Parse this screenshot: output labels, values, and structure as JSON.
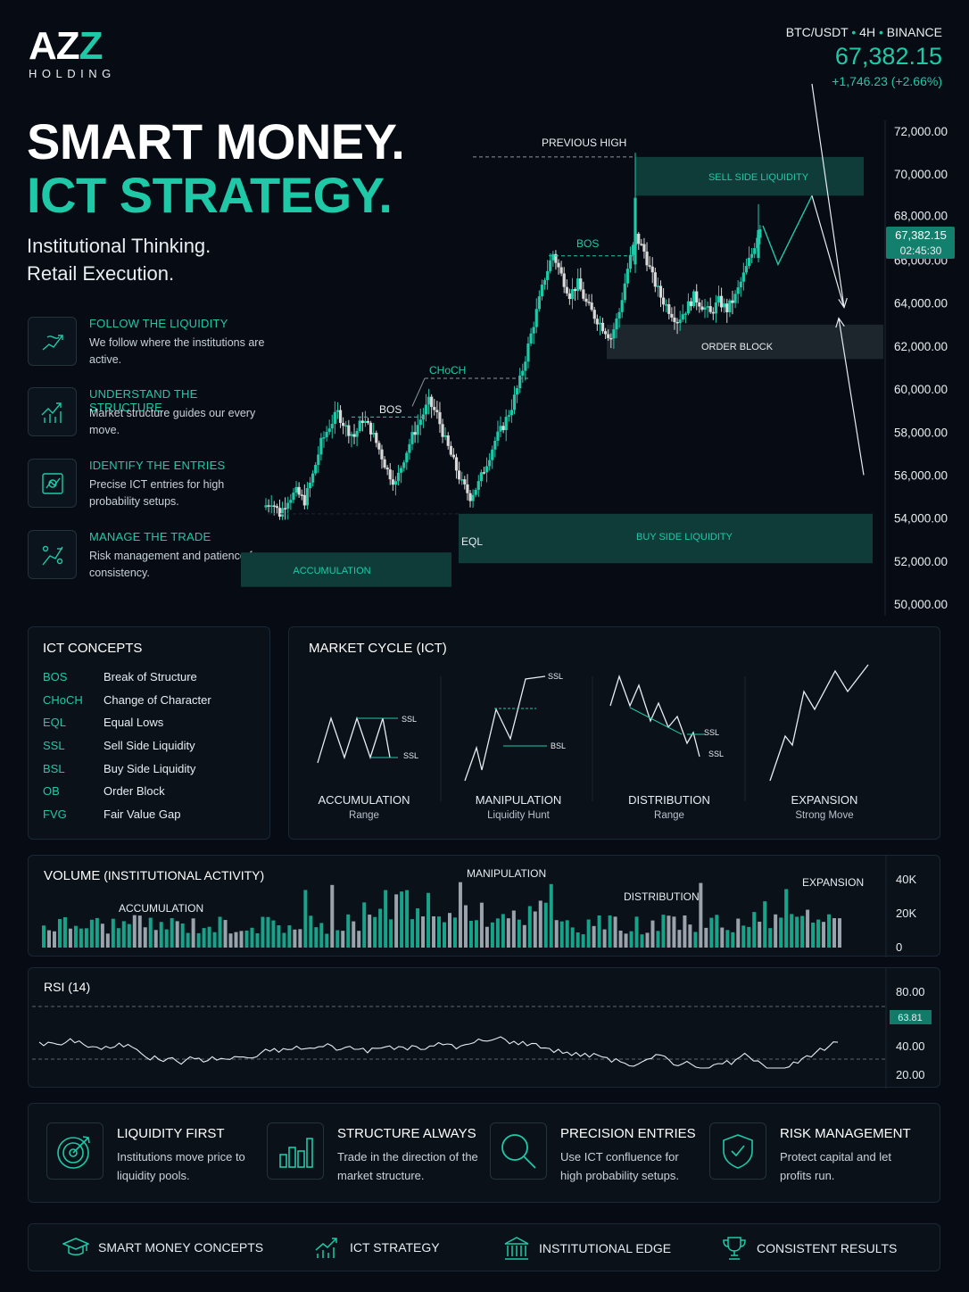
{
  "brand": {
    "logo_main_a": "AZ",
    "logo_main_b": "Z",
    "logo_sub": "HOLDING"
  },
  "ticker": {
    "pair": "BTC/USDT",
    "sep": "•",
    "timeframe": "4H",
    "exchange": "BINANCE",
    "price": "67,382.15",
    "change": "+1,746.23 (+2.66%)"
  },
  "hero": {
    "line1": "SMART MONEY.",
    "line2": "ICT STRATEGY.",
    "tag1": "Institutional Thinking.",
    "tag2": "Retail Execution."
  },
  "features": [
    {
      "title": "FOLLOW THE LIQUIDITY",
      "desc": "We follow where the institutions are active.",
      "icon": "liquidity-icon"
    },
    {
      "title": "UNDERSTAND THE STRUCTURE",
      "desc": "Market structure guides our every move.",
      "icon": "structure-icon"
    },
    {
      "title": "IDENTIFY THE ENTRIES",
      "desc": "Precise ICT entries for high probability setups.",
      "icon": "entries-icon"
    },
    {
      "title": "MANAGE THE TRADE",
      "desc": "Risk management and patience for consistency.",
      "icon": "manage-icon"
    }
  ],
  "colors": {
    "accent": "#1fc9a8",
    "bear": "#d9d9d9",
    "bg": "#070c14"
  },
  "chart_data": [
    {
      "type": "candlestick",
      "title": "",
      "ylim": [
        50000,
        72000
      ],
      "yticks": [
        "72,000.00",
        "70,000.00",
        "68,000.00",
        "66,000.00",
        "64,000.00",
        "62,000.00",
        "60,000.00",
        "58,000.00",
        "56,000.00",
        "54,000.00",
        "52,000.00",
        "50,000.00"
      ],
      "last_price": "67,382.15",
      "countdown": "02:45:30",
      "path": [
        54500,
        54800,
        54200,
        54900,
        55200,
        54800,
        56000,
        57500,
        58300,
        58900,
        58200,
        57800,
        58600,
        58100,
        57200,
        56200,
        55600,
        56800,
        57800,
        58600,
        59400,
        58800,
        57600,
        56600,
        55600,
        55000,
        55600,
        56600,
        57600,
        58300,
        59200,
        60400,
        62000,
        63600,
        65200,
        66300,
        65300,
        64400,
        64900,
        64000,
        63400,
        62900,
        62400,
        63600,
        65600,
        67100,
        66400,
        65200,
        64300,
        63700,
        63200,
        63700,
        64300,
        63900,
        63500,
        64100,
        63700,
        64300,
        65300,
        66300,
        67600
      ],
      "annotations": {
        "previous_high": "PREVIOUS HIGH",
        "ssl": "SELL SIDE LIQUIDITY",
        "bos1": "BOS",
        "bos2": "BOS",
        "choch": "CHoCH",
        "order_block": "ORDER BLOCK",
        "eql": "EQL",
        "bsl": "BUY SIDE LIQUIDITY",
        "accumulation": "ACCUMULATION"
      },
      "projection": [
        [
          67600,
          69000
        ],
        [
          69000,
          63800
        ],
        [
          62900,
          55900
        ]
      ]
    },
    {
      "type": "bar",
      "title": "VOLUME",
      "title_suffix": " (INSTITUTIONAL ACTIVITY)",
      "ylim": [
        0,
        40000
      ],
      "yticks": [
        "40K",
        "20K",
        "0"
      ],
      "phases": [
        "ACCUMULATION",
        "MANIPULATION",
        "DISTRIBUTION",
        "EXPANSION"
      ]
    },
    {
      "type": "line",
      "title": "RSI (14)",
      "ylim": [
        20,
        80
      ],
      "yticks": [
        "80.00",
        "40.00",
        "20.00"
      ],
      "current": "63.81"
    }
  ],
  "concepts": {
    "title": "ICT CONCEPTS",
    "items": [
      {
        "abbr": "BOS",
        "name": "Break of Structure"
      },
      {
        "abbr": "CHoCH",
        "name": "Change of Character"
      },
      {
        "abbr": "EQL",
        "name": "Equal Lows"
      },
      {
        "abbr": "SSL",
        "name": "Sell Side Liquidity"
      },
      {
        "abbr": "BSL",
        "name": "Buy Side Liquidity"
      },
      {
        "abbr": "OB",
        "name": "Order Block"
      },
      {
        "abbr": "FVG",
        "name": "Fair Value Gap"
      }
    ]
  },
  "cycle": {
    "title": "MARKET CYCLE (ICT)",
    "stages": [
      {
        "name": "ACCUMULATION",
        "sub": "Range"
      },
      {
        "name": "MANIPULATION",
        "sub": "Liquidity Hunt"
      },
      {
        "name": "DISTRIBUTION",
        "sub": "Range"
      },
      {
        "name": "EXPANSION",
        "sub": "Strong Move"
      }
    ],
    "ssl": "SSL",
    "bsl": "BSL"
  },
  "principles": [
    {
      "title": "LIQUIDITY FIRST",
      "desc": "Institutions move price to liquidity pools.",
      "icon": "target-icon"
    },
    {
      "title": "STRUCTURE ALWAYS",
      "desc": "Trade in the direction of the market structure.",
      "icon": "bar-chart-icon"
    },
    {
      "title": "PRECISION ENTRIES",
      "desc": "Use ICT confluence for high probability setups.",
      "icon": "magnifier-icon"
    },
    {
      "title": "RISK MANAGEMENT",
      "desc": "Protect capital and let profits run.",
      "icon": "shield-check-icon"
    }
  ],
  "footer": [
    {
      "label": "SMART MONEY CONCEPTS",
      "icon": "graduation-cap-icon"
    },
    {
      "label": "ICT STRATEGY",
      "icon": "trend-chart-icon"
    },
    {
      "label": "INSTITUTIONAL EDGE",
      "icon": "bank-icon"
    },
    {
      "label": "CONSISTENT RESULTS",
      "icon": "trophy-icon"
    }
  ]
}
